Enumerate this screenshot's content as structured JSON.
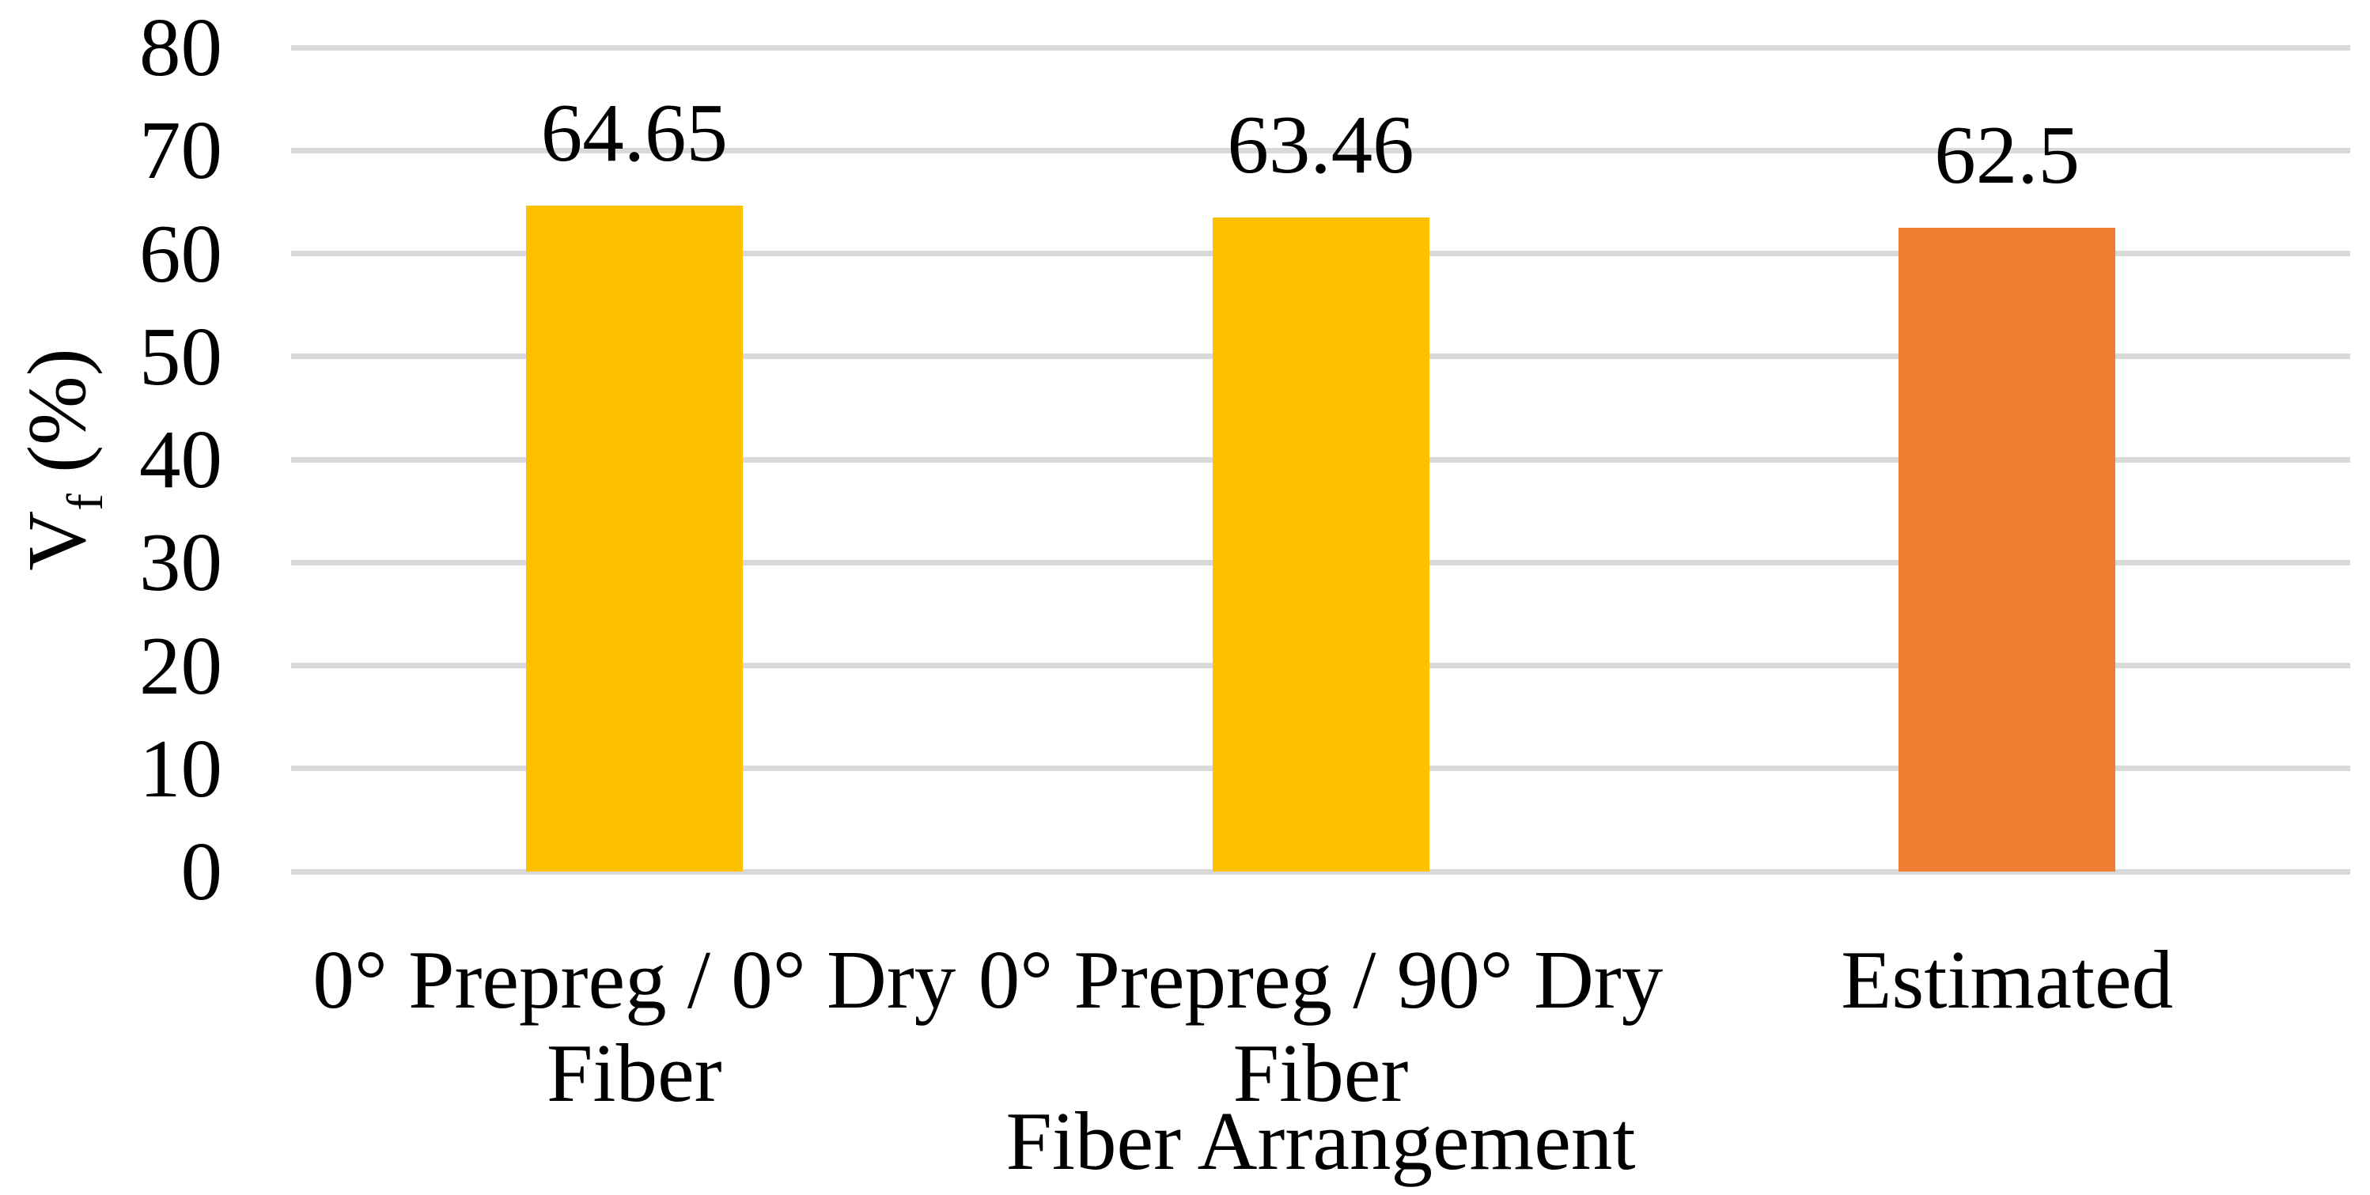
{
  "chart_data": {
    "type": "bar",
    "title": "",
    "categories": [
      "0° Prepreg / 0° Dry Fiber",
      "0° Prepreg / 90° Dry Fiber",
      "Estimated"
    ],
    "category_lines": [
      [
        "0° Prepreg / 0° Dry",
        "Fiber"
      ],
      [
        "0° Prepreg / 90° Dry",
        "Fiber"
      ],
      [
        "Estimated"
      ]
    ],
    "values": [
      64.65,
      63.46,
      62.5
    ],
    "data_labels": [
      "64.65",
      "63.46",
      "62.5"
    ],
    "bar_colors": [
      "#FFC000",
      "#FFC000",
      "#ED7D31"
    ],
    "xlabel": "Fiber Arrangement",
    "ylabel": "Vf (%)",
    "ylabel_parts": {
      "prefix": "V",
      "sub": "f",
      "suffix": " (%)"
    },
    "ylim": [
      0,
      80
    ],
    "yticks": [
      0,
      10,
      20,
      30,
      40,
      50,
      60,
      70,
      80
    ],
    "grid": "horizontal",
    "legend": "none",
    "colors": {
      "gridline": "#D9D9D9",
      "text": "#000000",
      "background": "#FFFFFF"
    }
  }
}
